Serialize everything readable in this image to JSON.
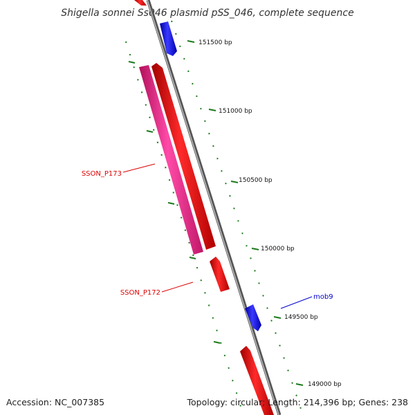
{
  "title": "Shigella sonnei Ss046 plasmid pSS_046, complete sequence",
  "footer": {
    "accession": "Accession: NC_007385",
    "summary": "Topology: circular; Length: 214,396 bp; Genes: 238"
  },
  "colors": {
    "backbone": "#888888",
    "ruler": "#1a7a1a",
    "forward_gene": "#ee1111",
    "reverse_gene": "#1a1aee",
    "highlight_gene": "#ee2288",
    "label_red": "#dd0000",
    "label_blue": "#0000cc"
  },
  "ruler_ticks": [
    {
      "label": "151500 bp"
    },
    {
      "label": "151000 bp"
    },
    {
      "label": "150500 bp"
    },
    {
      "label": "150000 bp"
    },
    {
      "label": "149500 bp"
    },
    {
      "label": "149000 bp"
    }
  ],
  "gene_labels": {
    "p173": "SSON_P173",
    "p172": "SSON_P172",
    "mob9": "mob9"
  }
}
